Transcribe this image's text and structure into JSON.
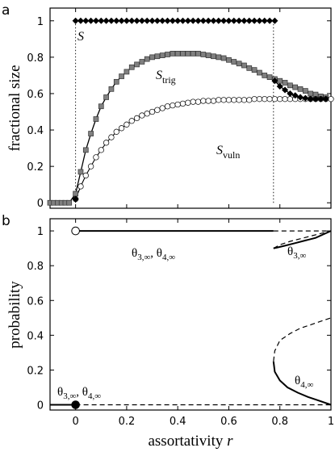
{
  "chart_data": [
    {
      "panel": "a",
      "type": "line",
      "ylabel": "fractional size",
      "xlim": [
        -0.1,
        1
      ],
      "ylim": [
        -0.03,
        1.07
      ],
      "x_ticks": [
        0,
        0.2,
        0.4,
        0.6,
        0.8,
        1
      ],
      "y_ticks": [
        0,
        0.2,
        0.4,
        0.6,
        0.8,
        1
      ],
      "x_tick_labels": [
        "0",
        "0.2",
        "0.4",
        "0.6",
        "0.8",
        "1"
      ],
      "y_tick_labels": [
        "0",
        "0.2",
        "0.4",
        "0.6",
        "0.8",
        "1"
      ],
      "series": [
        {
          "name": "S",
          "label": {
            "main": "S",
            "sub": ""
          },
          "marker": "diamond",
          "color": "#000000",
          "x": [
            -0.1,
            -0.085,
            -0.07,
            -0.055,
            -0.04,
            -0.025,
            -0.01,
            0.0
          ],
          "y": [
            0,
            0,
            0,
            0,
            0,
            0,
            0,
            0.02
          ],
          "x_high": [
            0.0,
            0.02,
            0.04,
            0.06,
            0.08,
            0.1,
            0.12,
            0.14,
            0.16,
            0.18,
            0.2,
            0.22,
            0.24,
            0.26,
            0.28,
            0.3,
            0.32,
            0.34,
            0.36,
            0.38,
            0.4,
            0.42,
            0.44,
            0.46,
            0.48,
            0.5,
            0.52,
            0.54,
            0.56,
            0.58,
            0.6,
            0.62,
            0.64,
            0.66,
            0.68,
            0.7,
            0.72,
            0.74,
            0.76,
            0.78
          ],
          "y_high": 1,
          "x_tail": [
            0.78,
            0.8,
            0.82,
            0.84,
            0.86,
            0.88,
            0.9,
            0.92,
            0.94,
            0.96,
            0.98
          ],
          "y_tail": [
            0.67,
            0.64,
            0.62,
            0.6,
            0.59,
            0.58,
            0.575,
            0.57,
            0.57,
            0.57,
            0.57
          ]
        },
        {
          "name": "S_trig",
          "label": {
            "main": "S",
            "sub": "trig"
          },
          "marker": "square",
          "color": "#808080",
          "x": [
            -0.1,
            -0.085,
            -0.07,
            -0.055,
            -0.04,
            -0.025,
            0.0,
            0.02,
            0.04,
            0.06,
            0.08,
            0.1,
            0.12,
            0.14,
            0.16,
            0.18,
            0.2,
            0.22,
            0.24,
            0.26,
            0.28,
            0.3,
            0.32,
            0.34,
            0.36,
            0.38,
            0.4,
            0.42,
            0.44,
            0.46,
            0.48,
            0.5,
            0.52,
            0.54,
            0.56,
            0.58,
            0.6,
            0.62,
            0.64,
            0.66,
            0.68,
            0.7,
            0.72,
            0.74,
            0.76,
            0.78,
            0.8,
            0.82,
            0.84,
            0.86,
            0.88,
            0.9,
            0.92,
            0.94,
            0.96,
            0.98
          ],
          "y": [
            0,
            0,
            0,
            0,
            0,
            0,
            0.05,
            0.17,
            0.29,
            0.38,
            0.46,
            0.53,
            0.58,
            0.625,
            0.665,
            0.695,
            0.72,
            0.745,
            0.76,
            0.775,
            0.79,
            0.8,
            0.805,
            0.81,
            0.815,
            0.82,
            0.82,
            0.82,
            0.82,
            0.82,
            0.82,
            0.815,
            0.81,
            0.805,
            0.8,
            0.795,
            0.785,
            0.775,
            0.765,
            0.755,
            0.74,
            0.73,
            0.715,
            0.7,
            0.69,
            0.68,
            0.67,
            0.66,
            0.645,
            0.635,
            0.625,
            0.615,
            0.6,
            0.595,
            0.585,
            0.58
          ]
        },
        {
          "name": "S_vuln",
          "label": {
            "main": "S",
            "sub": "vuln"
          },
          "marker": "circle",
          "color": "#ffffff",
          "x": [
            0.0,
            0.02,
            0.04,
            0.06,
            0.08,
            0.1,
            0.12,
            0.14,
            0.16,
            0.18,
            0.2,
            0.22,
            0.24,
            0.26,
            0.28,
            0.3,
            0.32,
            0.34,
            0.36,
            0.38,
            0.4,
            0.42,
            0.44,
            0.46,
            0.48,
            0.5,
            0.52,
            0.54,
            0.56,
            0.58,
            0.6,
            0.62,
            0.64,
            0.66,
            0.68,
            0.7,
            0.72,
            0.74,
            0.76,
            0.78,
            0.8,
            0.82,
            0.84,
            0.86,
            0.88,
            0.9,
            0.92,
            0.94,
            0.96,
            0.98,
            1.0
          ],
          "y": [
            0.02,
            0.09,
            0.15,
            0.2,
            0.25,
            0.29,
            0.33,
            0.36,
            0.39,
            0.41,
            0.43,
            0.45,
            0.465,
            0.48,
            0.49,
            0.5,
            0.51,
            0.52,
            0.53,
            0.535,
            0.54,
            0.545,
            0.55,
            0.555,
            0.555,
            0.56,
            0.56,
            0.56,
            0.565,
            0.565,
            0.565,
            0.565,
            0.565,
            0.565,
            0.565,
            0.57,
            0.57,
            0.57,
            0.57,
            0.57,
            0.57,
            0.57,
            0.57,
            0.57,
            0.57,
            0.57,
            0.57,
            0.57,
            0.57,
            0.57,
            0.57
          ]
        }
      ],
      "dotted_verticals": [
        0.0,
        0.775
      ]
    },
    {
      "panel": "b",
      "type": "line",
      "xlabel": "assortativity r",
      "xlabel_main": "assortativity",
      "xlabel_var": "r",
      "ylabel": "probability",
      "xlim": [
        -0.1,
        1
      ],
      "ylim": [
        -0.03,
        1.07
      ],
      "x_ticks": [
        0,
        0.2,
        0.4,
        0.6,
        0.8,
        1
      ],
      "y_ticks": [
        0,
        0.2,
        0.4,
        0.6,
        0.8,
        1
      ],
      "x_tick_labels": [
        "0",
        "0.2",
        "0.4",
        "0.6",
        "0.8",
        "1"
      ],
      "y_tick_labels": [
        "0",
        "0.2",
        "0.4",
        "0.6",
        "0.8",
        "1"
      ],
      "lines": [
        {
          "style": "solid",
          "x": [
            -0.1,
            0.0
          ],
          "y": [
            0,
            0
          ]
        },
        {
          "style": "dashed",
          "x": [
            0.0,
            1.0
          ],
          "y": [
            0,
            0
          ]
        },
        {
          "style": "solid",
          "x": [
            0.0,
            0.775
          ],
          "y": [
            1,
            1
          ]
        },
        {
          "style": "dashed",
          "x": [
            0.775,
            1.0
          ],
          "y": [
            1,
            1
          ]
        },
        {
          "style": "solid",
          "x": [
            0.775,
            0.79,
            0.82,
            0.86,
            0.9,
            0.94,
            0.97,
            1.0
          ],
          "y": [
            0.9,
            0.905,
            0.915,
            0.93,
            0.945,
            0.96,
            0.98,
            1.0
          ]
        },
        {
          "style": "dashed",
          "x": [
            0.775,
            0.8,
            0.84,
            0.88,
            0.92,
            0.96,
            1.0
          ],
          "y": [
            0.9,
            0.92,
            0.94,
            0.955,
            0.97,
            0.985,
            1.0
          ]
        },
        {
          "style": "solid",
          "x": [
            0.775,
            0.78,
            0.8,
            0.83,
            0.87,
            0.91,
            0.95,
            1.0
          ],
          "y": [
            0.25,
            0.19,
            0.14,
            0.1,
            0.07,
            0.045,
            0.025,
            0.0
          ]
        },
        {
          "style": "dashed",
          "x": [
            0.775,
            0.78,
            0.8,
            0.84,
            0.88,
            0.92,
            0.96,
            1.0
          ],
          "y": [
            0.25,
            0.31,
            0.37,
            0.41,
            0.44,
            0.46,
            0.48,
            0.5
          ]
        }
      ],
      "points": [
        {
          "x": 0.0,
          "y": 1.0,
          "fill": "open"
        },
        {
          "x": 0.0,
          "y": 0.0,
          "fill": "filled"
        }
      ],
      "annotations": [
        {
          "text": "θ3,∞, θ4,∞",
          "parts": [
            "θ",
            "3,∞",
            ", θ",
            "4,∞"
          ]
        },
        {
          "text": "θ3,∞",
          "parts": [
            "θ",
            "3,∞"
          ]
        },
        {
          "text": "θ4,∞",
          "parts": [
            "θ",
            "4,∞"
          ]
        },
        {
          "text": "θ3,∞, θ4,∞",
          "parts": [
            "θ",
            "3,∞",
            ", θ",
            "4,∞"
          ]
        }
      ]
    }
  ],
  "panel_letters": [
    "a",
    "b"
  ]
}
